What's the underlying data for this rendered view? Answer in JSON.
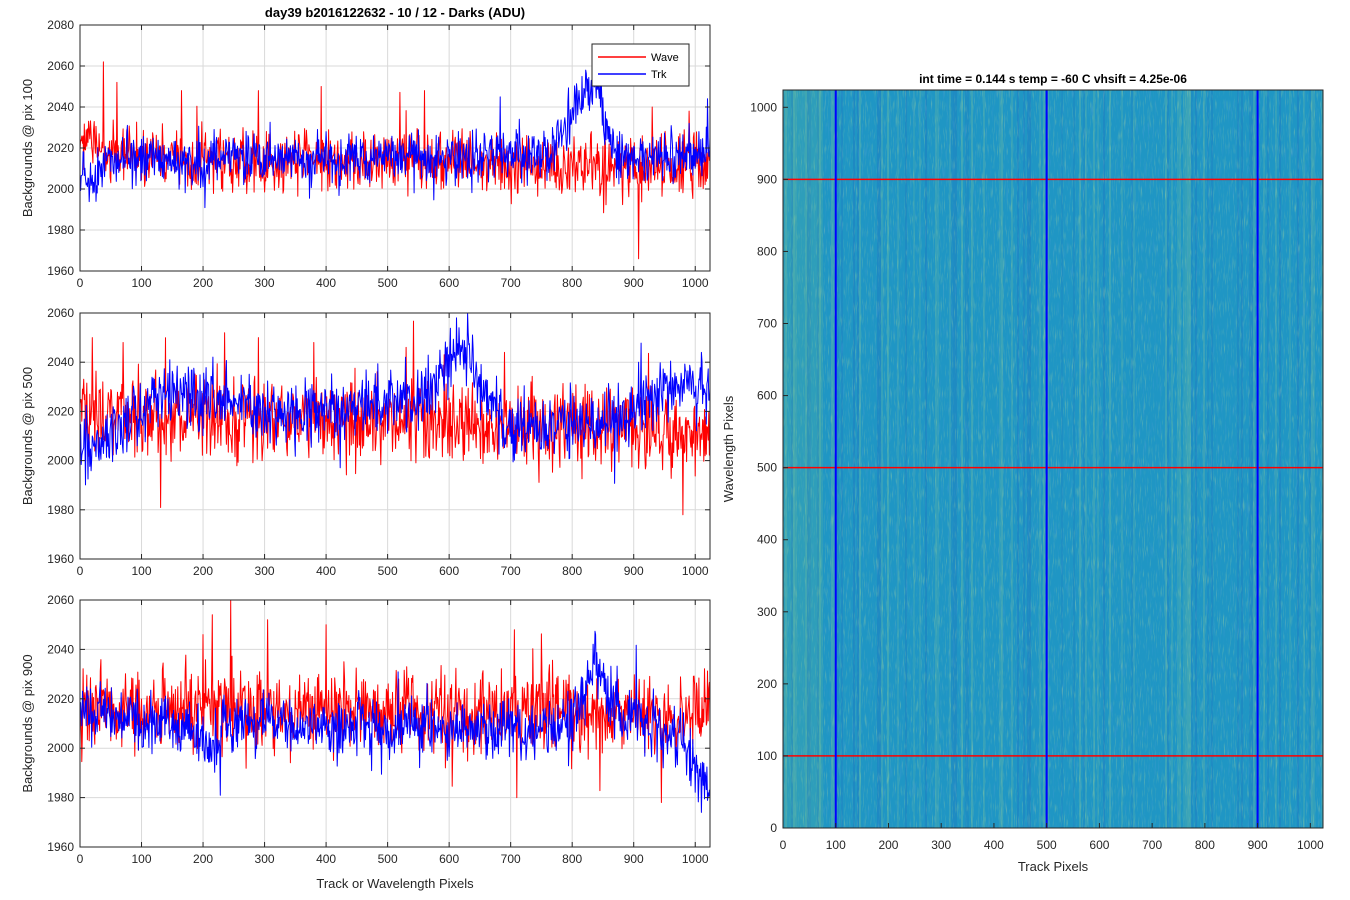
{
  "figure": {
    "suptitle": "day39 b2016122632 - 10 / 12 - Darks (ADU)",
    "colors": {
      "wave": "#ff0000",
      "trk": "#0000ff",
      "heatmap_base": "#1f96c4",
      "grid": "#d9d9d9",
      "axis": "#262626"
    }
  },
  "chart_data": [
    {
      "id": "pix100",
      "type": "line",
      "title": "day39 b2016122632 - 10 / 12 - Darks (ADU)",
      "xlabel": "",
      "ylabel": "Backgrounds @ pix 100",
      "xlim": [
        0,
        1024
      ],
      "ylim": [
        1960,
        2080
      ],
      "xticks": [
        0,
        100,
        200,
        300,
        400,
        500,
        600,
        700,
        800,
        900,
        1000
      ],
      "yticks": [
        1960,
        1980,
        2000,
        2020,
        2040,
        2060,
        2080
      ],
      "grid": true,
      "legend": {
        "position": "top-right",
        "entries": [
          "Wave",
          "Trk"
        ]
      },
      "series": [
        {
          "name": "Wave",
          "color": "#ff0000",
          "mean": 2013,
          "noise": 7,
          "profile": [
            [
              0,
              2025
            ],
            [
              40,
              2018
            ],
            [
              120,
              2014
            ],
            [
              700,
              2013
            ],
            [
              900,
              2010
            ],
            [
              1024,
              2012
            ]
          ],
          "spikes": [
            [
              38,
              2062
            ],
            [
              60,
              2052
            ],
            [
              165,
              2048
            ],
            [
              290,
              2048
            ],
            [
              392,
              2050
            ],
            [
              560,
              2048
            ],
            [
              908,
              1966
            ],
            [
              930,
              2040
            ],
            [
              990,
              2038
            ]
          ]
        },
        {
          "name": "Trk",
          "color": "#0000ff",
          "mean": 2015,
          "noise": 6,
          "profile": [
            [
              0,
              2008
            ],
            [
              20,
              2002
            ],
            [
              40,
              2014
            ],
            [
              760,
              2016
            ],
            [
              790,
              2030
            ],
            [
              810,
              2045
            ],
            [
              840,
              2050
            ],
            [
              860,
              2025
            ],
            [
              880,
              2014
            ],
            [
              1024,
              2018
            ]
          ],
          "spikes": [
            [
              822,
              2058
            ],
            [
              835,
              2056
            ],
            [
              1020,
              2044
            ]
          ]
        }
      ]
    },
    {
      "id": "pix500",
      "type": "line",
      "xlabel": "",
      "ylabel": "Backgrounds @ pix 500",
      "xlim": [
        0,
        1024
      ],
      "ylim": [
        1960,
        2060
      ],
      "xticks": [
        0,
        100,
        200,
        300,
        400,
        500,
        600,
        700,
        800,
        900,
        1000
      ],
      "yticks": [
        1960,
        1980,
        2000,
        2020,
        2040,
        2060
      ],
      "grid": true,
      "series": [
        {
          "name": "Wave",
          "color": "#ff0000",
          "mean": 2014,
          "noise": 8,
          "profile": [
            [
              0,
              2018
            ],
            [
              1024,
              2012
            ]
          ],
          "spikes": [
            [
              20,
              2050
            ],
            [
              70,
              2048
            ],
            [
              235,
              2052
            ],
            [
              290,
              2050
            ],
            [
              380,
              2048
            ],
            [
              530,
              2046
            ],
            [
              690,
              2044
            ],
            [
              980,
              1978
            ]
          ]
        },
        {
          "name": "Trk",
          "color": "#0000ff",
          "mean": 2016,
          "noise": 6,
          "profile": [
            [
              0,
              2005
            ],
            [
              60,
              2012
            ],
            [
              100,
              2018
            ],
            [
              150,
              2028
            ],
            [
              260,
              2024
            ],
            [
              350,
              2018
            ],
            [
              500,
              2024
            ],
            [
              560,
              2028
            ],
            [
              600,
              2040
            ],
            [
              620,
              2045
            ],
            [
              660,
              2025
            ],
            [
              700,
              2012
            ],
            [
              900,
              2018
            ],
            [
              940,
              2030
            ],
            [
              1024,
              2028
            ]
          ],
          "spikes": [
            [
              612,
              2058
            ],
            [
              1010,
              2044
            ]
          ]
        }
      ]
    },
    {
      "id": "pix900",
      "type": "line",
      "xlabel": "Track or Wavelength Pixels",
      "ylabel": "Backgrounds @ pix 900",
      "xlim": [
        0,
        1024
      ],
      "ylim": [
        1960,
        2060
      ],
      "xticks": [
        0,
        100,
        200,
        300,
        400,
        500,
        600,
        700,
        800,
        900,
        1000
      ],
      "yticks": [
        1960,
        1980,
        2000,
        2020,
        2040,
        2060
      ],
      "grid": true,
      "series": [
        {
          "name": "Wave",
          "color": "#ff0000",
          "mean": 2014,
          "noise": 8,
          "profile": [
            [
              0,
              2016
            ],
            [
              1024,
              2014
            ]
          ],
          "spikes": [
            [
              200,
              2046
            ],
            [
              215,
              2054
            ],
            [
              245,
              2060
            ],
            [
              305,
              2052
            ],
            [
              400,
              2050
            ],
            [
              710,
              1980
            ],
            [
              945,
              1978
            ]
          ]
        },
        {
          "name": "Trk",
          "color": "#0000ff",
          "mean": 2012,
          "noise": 6,
          "profile": [
            [
              0,
              2015
            ],
            [
              180,
              2008
            ],
            [
              210,
              2000
            ],
            [
              240,
              2010
            ],
            [
              780,
              2008
            ],
            [
              820,
              2020
            ],
            [
              840,
              2038
            ],
            [
              860,
              2018
            ],
            [
              980,
              2004
            ],
            [
              1000,
              1990
            ],
            [
              1024,
              1985
            ]
          ],
          "spikes": [
            [
              838,
              2046
            ],
            [
              1010,
              1974
            ]
          ]
        }
      ]
    },
    {
      "id": "image",
      "type": "heatmap",
      "title": "int time = 0.144 s   temp = -60 C   vhsift = 4.25e-06",
      "xlabel": "Track Pixels",
      "ylabel": "Wavelength Pixels",
      "xlim": [
        0,
        1024
      ],
      "ylim": [
        0,
        1024
      ],
      "xticks": [
        0,
        100,
        200,
        300,
        400,
        500,
        600,
        700,
        800,
        900,
        1000
      ],
      "yticks": [
        0,
        100,
        200,
        300,
        400,
        500,
        600,
        700,
        800,
        900,
        1000
      ],
      "grid": false,
      "vertical_lines": [
        100,
        500,
        900
      ],
      "vertical_line_color": "#0000ff",
      "horizontal_lines": [
        100,
        500,
        900
      ],
      "horizontal_line_color": "#ff0000"
    }
  ]
}
